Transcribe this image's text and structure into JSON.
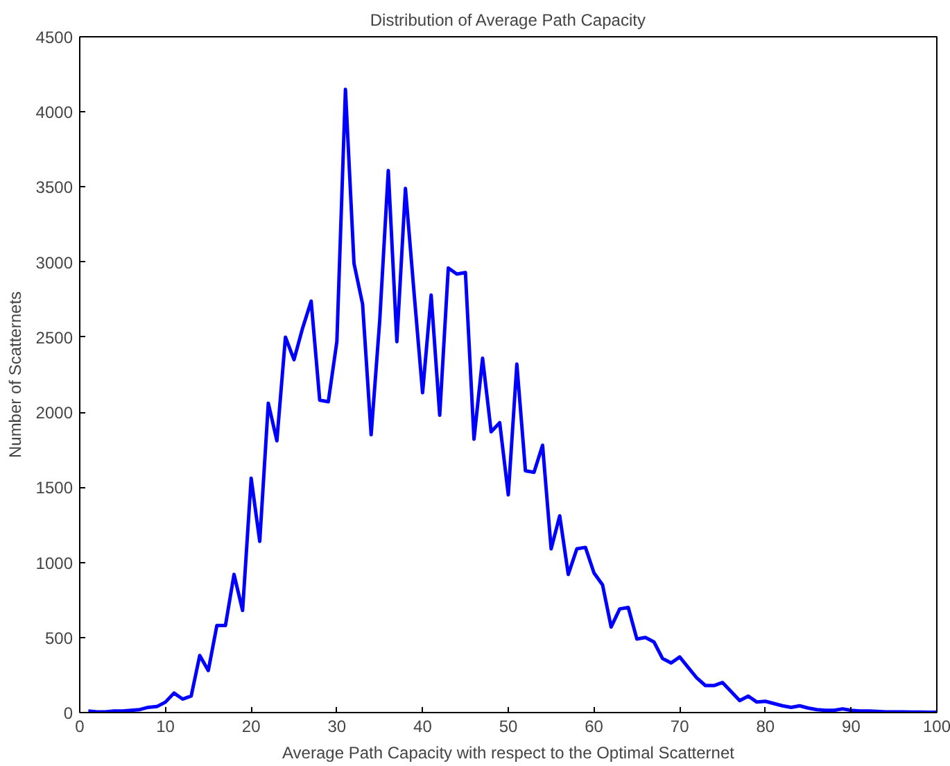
{
  "chart_data": {
    "type": "line",
    "title": "Distribution of Average Path Capacity",
    "xlabel": "Average Path Capacity with respect to the Optimal Scatternet",
    "ylabel": "Number of Scatternets",
    "x": [
      1,
      2,
      3,
      4,
      5,
      6,
      7,
      8,
      9,
      10,
      11,
      12,
      13,
      14,
      15,
      16,
      17,
      18,
      19,
      20,
      21,
      22,
      23,
      24,
      25,
      26,
      27,
      28,
      29,
      30,
      31,
      32,
      33,
      34,
      35,
      36,
      37,
      38,
      39,
      40,
      41,
      42,
      43,
      44,
      45,
      46,
      47,
      48,
      49,
      50,
      51,
      52,
      53,
      54,
      55,
      56,
      57,
      58,
      59,
      60,
      61,
      62,
      63,
      64,
      65,
      66,
      67,
      68,
      69,
      70,
      71,
      72,
      73,
      74,
      75,
      76,
      77,
      78,
      79,
      80,
      81,
      82,
      83,
      84,
      85,
      86,
      87,
      88,
      89,
      90,
      91,
      92,
      93,
      94,
      95,
      96,
      97,
      98,
      99,
      100
    ],
    "series": [
      {
        "color": "#0000ff",
        "values": [
          10,
          5,
          5,
          10,
          10,
          15,
          20,
          35,
          40,
          70,
          130,
          90,
          110,
          380,
          280,
          580,
          580,
          920,
          680,
          1560,
          1140,
          2060,
          1810,
          2500,
          2350,
          2560,
          2740,
          2080,
          2070,
          2470,
          4150,
          2990,
          2720,
          1850,
          2610,
          3610,
          2470,
          3490,
          2800,
          2130,
          2780,
          1980,
          2960,
          2920,
          2930,
          1820,
          2360,
          1870,
          1930,
          1450,
          2320,
          1610,
          1600,
          1780,
          1090,
          1310,
          920,
          1090,
          1100,
          930,
          850,
          570,
          690,
          700,
          490,
          500,
          470,
          360,
          330,
          370,
          300,
          230,
          180,
          180,
          200,
          140,
          80,
          110,
          70,
          75,
          60,
          45,
          35,
          45,
          30,
          20,
          15,
          15,
          25,
          15,
          10,
          10,
          8,
          5,
          5,
          5,
          3,
          3,
          2,
          2
        ]
      }
    ],
    "xlim": [
      0,
      100
    ],
    "ylim": [
      0,
      4500
    ],
    "xticks": [
      0,
      10,
      20,
      30,
      40,
      50,
      60,
      70,
      80,
      90,
      100
    ],
    "yticks": [
      0,
      500,
      1000,
      1500,
      2000,
      2500,
      3000,
      3500,
      4000,
      4500
    ],
    "grid": false,
    "marker": "none",
    "line_style": "solid"
  }
}
